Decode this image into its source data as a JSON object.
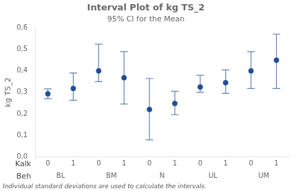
{
  "chart_data": {
    "type": "interval",
    "title": "Interval Plot of kg TS_2",
    "subtitle": "95% CI for the Mean",
    "ylabel": "kg TS_2",
    "footnote": "Individual standard deviations are used to calculate the intervals.",
    "categories": [
      "0",
      "1",
      "0",
      "1",
      "0",
      "1",
      "0",
      "1",
      "0",
      "1"
    ],
    "categories_label": "Kalk",
    "groups": [
      "BL",
      "BM",
      "N",
      "UL",
      "UM"
    ],
    "groups_label": "Beh",
    "values": [
      0.293,
      0.318,
      0.4,
      0.368,
      0.22,
      0.248,
      0.325,
      0.345,
      0.4,
      0.45
    ],
    "ci_lower": [
      0.27,
      0.263,
      0.35,
      0.245,
      0.078,
      0.195,
      0.3,
      0.295,
      0.318,
      0.318
    ],
    "ci_upper": [
      0.316,
      0.39,
      0.525,
      0.49,
      0.365,
      0.305,
      0.38,
      0.405,
      0.49,
      0.572
    ],
    "color": "#1f4e96",
    "ylim": [
      0.0,
      0.6
    ],
    "yticks": [
      {
        "value": 0.0,
        "label": "0,0"
      },
      {
        "value": 0.1,
        "label": "0,1"
      },
      {
        "value": 0.2,
        "label": "0,2"
      },
      {
        "value": 0.3,
        "label": "0,3"
      },
      {
        "value": 0.4,
        "label": "0,4"
      },
      {
        "value": 0.5,
        "label": "0,5"
      },
      {
        "value": 0.6,
        "label": "0,6"
      }
    ],
    "grid": false
  }
}
